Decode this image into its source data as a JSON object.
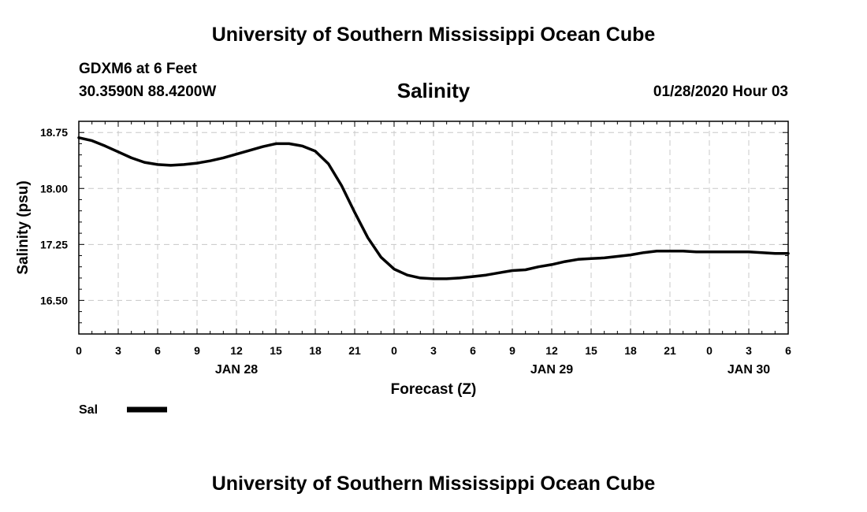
{
  "header": {
    "title": "University of Southern Mississippi Ocean Cube",
    "station": "GDXM6 at 6 Feet",
    "coords": "30.3590N 88.4200W",
    "chart_title": "Salinity",
    "datetime": "01/28/2020 Hour 03"
  },
  "footer": {
    "title": "University of Southern Mississippi Ocean Cube"
  },
  "legend": {
    "label": "Sal"
  },
  "chart_data": {
    "type": "line",
    "title": "Salinity",
    "xlabel": "Forecast (Z)",
    "ylabel": "Salinity (psu)",
    "x_unit": "forecast hour",
    "xlim": [
      0,
      54
    ],
    "ylim": [
      16.05,
      18.9
    ],
    "y_ticks": [
      16.5,
      17.25,
      18.0,
      18.75
    ],
    "y_tick_labels": [
      "16.50",
      "17.25",
      "18.00",
      "18.75"
    ],
    "x_ticks": [
      0,
      3,
      6,
      9,
      12,
      15,
      18,
      21,
      24,
      27,
      30,
      33,
      36,
      39,
      42,
      45,
      48,
      51,
      54
    ],
    "x_tick_labels": [
      "0",
      "3",
      "6",
      "9",
      "12",
      "15",
      "18",
      "21",
      "0",
      "3",
      "6",
      "9",
      "12",
      "15",
      "18",
      "21",
      "0",
      "3",
      "6"
    ],
    "day_labels": [
      {
        "x": 12,
        "label": "JAN 28"
      },
      {
        "x": 36,
        "label": "JAN 29"
      },
      {
        "x": 51,
        "label": "JAN 30"
      }
    ],
    "grid": true,
    "legend_position": "bottom-left",
    "series": [
      {
        "name": "Sal",
        "color": "#000000",
        "x": [
          0,
          1,
          2,
          3,
          4,
          5,
          6,
          7,
          8,
          9,
          10,
          11,
          12,
          13,
          14,
          15,
          16,
          17,
          18,
          19,
          20,
          21,
          22,
          23,
          24,
          25,
          26,
          27,
          28,
          29,
          30,
          31,
          32,
          33,
          34,
          35,
          36,
          37,
          38,
          39,
          40,
          41,
          42,
          43,
          44,
          45,
          46,
          47,
          48,
          49,
          50,
          51,
          52,
          53,
          54
        ],
        "y": [
          18.68,
          18.64,
          18.57,
          18.49,
          18.41,
          18.35,
          18.32,
          18.31,
          18.32,
          18.34,
          18.37,
          18.41,
          18.46,
          18.51,
          18.56,
          18.6,
          18.6,
          18.57,
          18.5,
          18.33,
          18.04,
          17.68,
          17.34,
          17.08,
          16.92,
          16.84,
          16.8,
          16.79,
          16.79,
          16.8,
          16.82,
          16.84,
          16.87,
          16.9,
          16.91,
          16.95,
          16.98,
          17.02,
          17.05,
          17.06,
          17.07,
          17.09,
          17.11,
          17.14,
          17.16,
          17.16,
          17.16,
          17.15,
          17.15,
          17.15,
          17.15,
          17.15,
          17.14,
          17.13,
          17.13
        ]
      }
    ]
  }
}
